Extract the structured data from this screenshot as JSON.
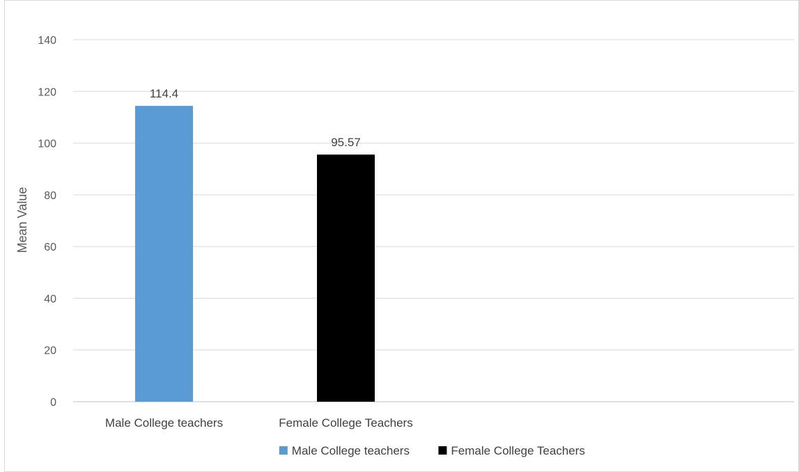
{
  "chart_data": {
    "type": "bar",
    "title": "",
    "xlabel": "",
    "ylabel": "Mean Value",
    "ylim": [
      0,
      140
    ],
    "yticks": [
      0,
      20,
      40,
      60,
      80,
      100,
      120,
      140
    ],
    "grid": true,
    "legend_position": "bottom",
    "categories": [
      "Male College teachers",
      "Female College Teachers"
    ],
    "values": [
      114.4,
      95.57
    ],
    "value_labels": [
      "114.4",
      "95.57"
    ],
    "colors": [
      "#5b9bd5",
      "#000000"
    ],
    "legend": [
      {
        "label": "Male College teachers",
        "color": "#5b9bd5"
      },
      {
        "label": "Female College Teachers",
        "color": "#000000"
      }
    ]
  }
}
